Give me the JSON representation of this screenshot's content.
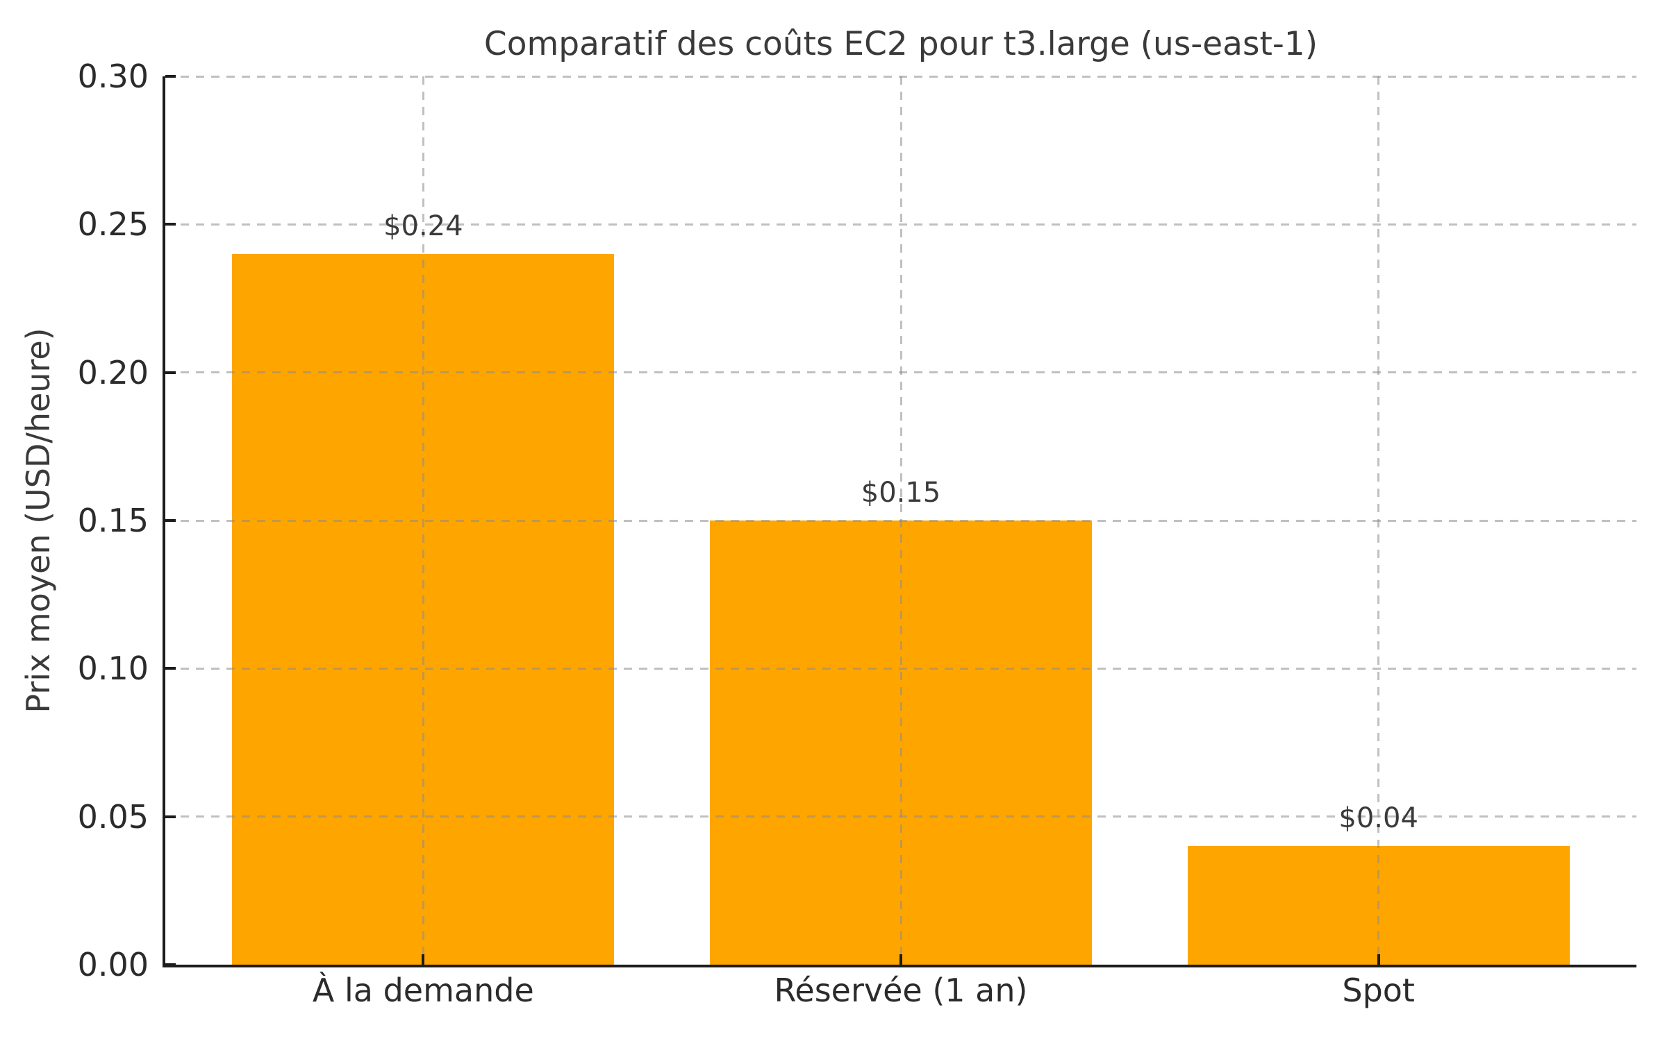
{
  "chart_data": {
    "type": "bar",
    "title": "Comparatif des coûts EC2 pour t3.large (us-east-1)",
    "xlabel": "",
    "ylabel": "Prix moyen (USD/heure)",
    "categories": [
      "À la demande",
      "Réservée (1 an)",
      "Spot"
    ],
    "values": [
      0.24,
      0.15,
      0.04
    ],
    "bar_labels": [
      "$0.24",
      "$0.15",
      "$0.04"
    ],
    "ylim": [
      0.0,
      0.3
    ],
    "yticks": [
      0.0,
      0.05,
      0.1,
      0.15,
      0.2,
      0.25,
      0.3
    ],
    "ytick_labels": [
      "0.00",
      "0.05",
      "0.10",
      "0.15",
      "0.20",
      "0.25",
      "0.30"
    ],
    "grid": "both-dashed-drawn-over-bars",
    "legend": "none",
    "colors": {
      "bar": "#ffa500",
      "grid": "#8c8c8c",
      "spine": "#1c1c1c",
      "text": "#3a3a3a",
      "tick_text": "#2b2b2b",
      "background": "#ffffff"
    }
  }
}
